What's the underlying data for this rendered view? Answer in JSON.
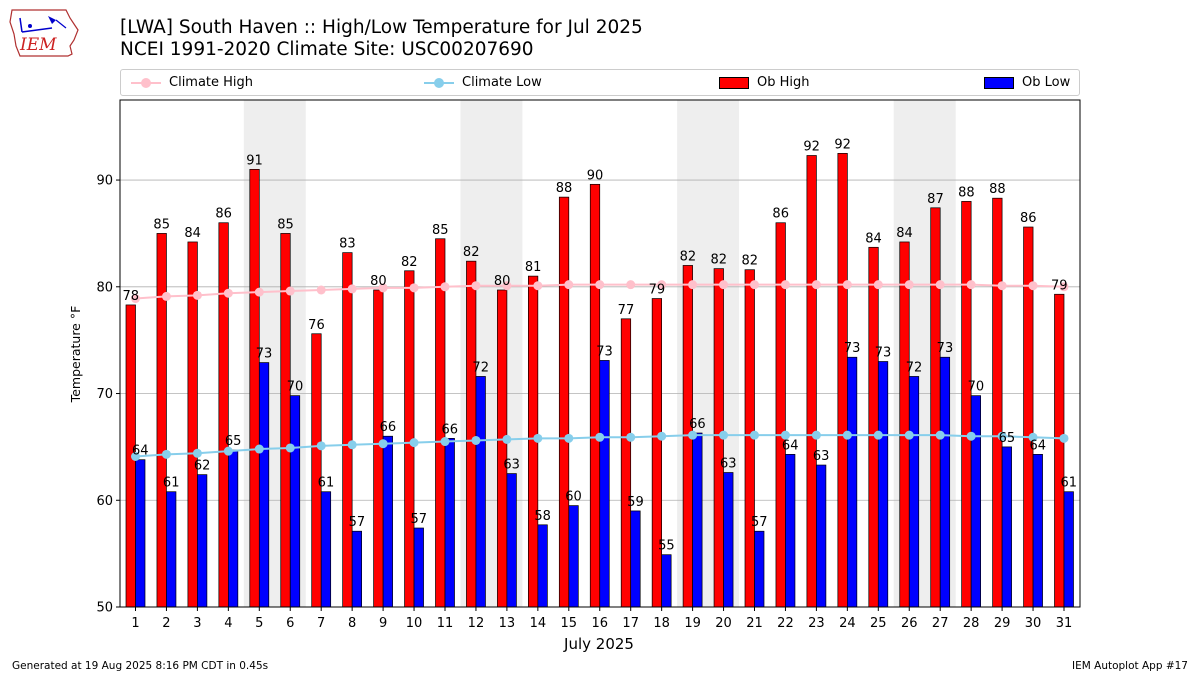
{
  "header": {
    "logo_text": "IEM",
    "title_line1": "[LWA] South Haven :: High/Low Temperature for Jul 2025",
    "title_line2": "NCEI 1991-2020 Climate Site: USC00207690"
  },
  "legend": {
    "climate_high": "Climate High",
    "climate_low": "Climate Low",
    "ob_high": "Ob High",
    "ob_low": "Ob Low"
  },
  "colors": {
    "ob_high": "#ff0000",
    "ob_low": "#0000ff",
    "climate_high": "#ffc0cb",
    "climate_low": "#87ceeb",
    "weekend_shade": "#eeeeee",
    "grid": "#b0b0b0"
  },
  "chart_data": {
    "type": "bar",
    "xlabel": "July 2025",
    "ylabel": "Temperature °F",
    "ylim": [
      50,
      97.5
    ],
    "yticks": [
      50,
      60,
      70,
      80,
      90
    ],
    "grid": true,
    "legend_position": "top",
    "categories": [
      "1",
      "2",
      "3",
      "4",
      "5",
      "6",
      "7",
      "8",
      "9",
      "10",
      "11",
      "12",
      "13",
      "14",
      "15",
      "16",
      "17",
      "18",
      "19",
      "20",
      "21",
      "22",
      "23",
      "24",
      "25",
      "26",
      "27",
      "28",
      "29",
      "30",
      "31"
    ],
    "weekend_shaded_days": [
      [
        5,
        6
      ],
      [
        12,
        13
      ],
      [
        19,
        20
      ],
      [
        26,
        27
      ]
    ],
    "series": [
      {
        "name": "Ob High",
        "kind": "bar",
        "values": [
          78.3,
          85,
          84.2,
          86,
          91,
          85,
          75.6,
          83.2,
          79.7,
          81.5,
          84.5,
          82.4,
          79.7,
          81,
          88.4,
          89.6,
          77,
          78.9,
          82,
          81.7,
          81.6,
          86,
          92.3,
          92.5,
          83.7,
          84.2,
          87.4,
          88,
          88.3,
          85.6,
          79.3
        ],
        "labels": [
          "78",
          "85",
          "84",
          "86",
          "91",
          "85",
          "76",
          "83",
          "80",
          "82",
          "85",
          "82",
          "80",
          "81",
          "88",
          "90",
          "77",
          "79",
          "82",
          "82",
          "82",
          "86",
          "92",
          "92",
          "84",
          "84",
          "87",
          "88",
          "88",
          "86",
          "79"
        ]
      },
      {
        "name": "Ob Low",
        "kind": "bar",
        "values": [
          63.8,
          60.8,
          62.4,
          64.7,
          72.9,
          69.8,
          60.8,
          57.1,
          66,
          57.4,
          65.8,
          71.6,
          62.5,
          57.7,
          59.5,
          73.1,
          59,
          54.9,
          66.3,
          62.6,
          57.1,
          64.3,
          63.3,
          73.4,
          73,
          71.6,
          73.4,
          69.8,
          65,
          64.3,
          60.8
        ],
        "labels": [
          "64",
          "61",
          "62",
          "65",
          "73",
          "70",
          "61",
          "57",
          "66",
          "57",
          "66",
          "72",
          "63",
          "58",
          "60",
          "73",
          "59",
          "55",
          "66",
          "63",
          "57",
          "64",
          "63",
          "73",
          "73",
          "72",
          "73",
          "70",
          "65",
          "64",
          "61"
        ]
      },
      {
        "name": "Climate High",
        "kind": "line",
        "values": [
          78.9,
          79.1,
          79.2,
          79.4,
          79.5,
          79.6,
          79.7,
          79.8,
          79.9,
          79.9,
          80,
          80.1,
          80.1,
          80.1,
          80.2,
          80.2,
          80.2,
          80.2,
          80.2,
          80.2,
          80.2,
          80.2,
          80.2,
          80.2,
          80.2,
          80.2,
          80.2,
          80.2,
          80.1,
          80.1,
          80
        ]
      },
      {
        "name": "Climate Low",
        "kind": "line",
        "values": [
          64.1,
          64.3,
          64.4,
          64.6,
          64.8,
          64.9,
          65.1,
          65.2,
          65.3,
          65.4,
          65.5,
          65.6,
          65.7,
          65.8,
          65.8,
          65.9,
          65.9,
          66,
          66.1,
          66.1,
          66.1,
          66.1,
          66.1,
          66.1,
          66.1,
          66.1,
          66.1,
          66,
          66,
          65.9,
          65.8
        ]
      }
    ]
  },
  "footer": {
    "left": "Generated at 19 Aug 2025 8:16 PM CDT in 0.45s",
    "right": "IEM Autoplot App #17"
  }
}
